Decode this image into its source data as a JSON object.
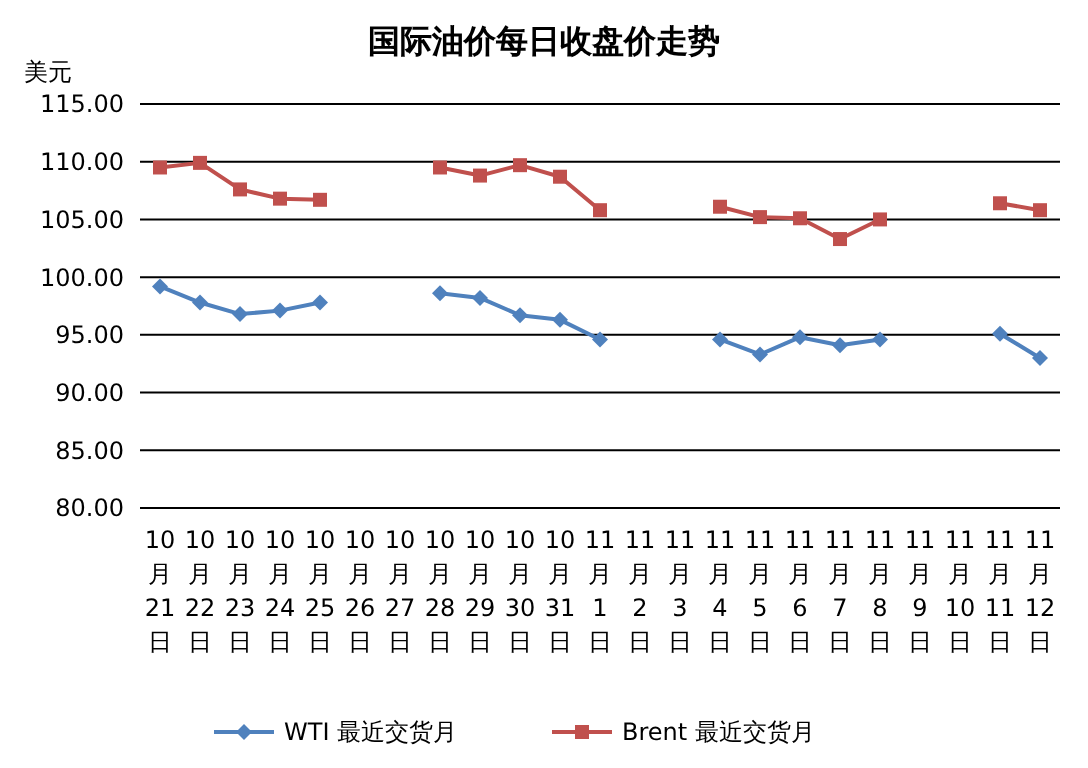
{
  "chart_data": {
    "type": "line",
    "title": "国际油价每日收盘价走势",
    "ylabel": "美元",
    "categories": [
      "10月21日",
      "10月22日",
      "10月23日",
      "10月24日",
      "10月25日",
      "10月26日",
      "10月27日",
      "10月28日",
      "10月29日",
      "10月30日",
      "10月31日",
      "11月1日",
      "11月2日",
      "11月3日",
      "11月4日",
      "11月5日",
      "11月6日",
      "11月7日",
      "11月8日",
      "11月9日",
      "11月10日",
      "11月11日",
      "11月12日"
    ],
    "series": [
      {
        "name": "WTI 最近交货月",
        "color": "#4f81bd",
        "marker": "diamond",
        "values": [
          99.2,
          97.8,
          96.8,
          97.1,
          97.8,
          null,
          null,
          98.6,
          98.2,
          96.7,
          96.3,
          94.6,
          null,
          null,
          94.6,
          93.3,
          94.8,
          94.1,
          94.6,
          null,
          null,
          95.1,
          93.0
        ]
      },
      {
        "name": "Brent 最近交货月",
        "color": "#c0504d",
        "marker": "square",
        "values": [
          109.5,
          109.9,
          107.6,
          106.8,
          106.7,
          null,
          null,
          109.5,
          108.8,
          109.7,
          108.7,
          105.8,
          null,
          null,
          106.1,
          105.2,
          105.1,
          103.3,
          105.0,
          null,
          null,
          106.4,
          105.8
        ]
      }
    ],
    "ylim": [
      80,
      115
    ],
    "yticks": [
      {
        "value": 80,
        "label": "80.00"
      },
      {
        "value": 85,
        "label": "85.00"
      },
      {
        "value": 90,
        "label": "90.00"
      },
      {
        "value": 95,
        "label": "95.00"
      },
      {
        "value": 100,
        "label": "100.00"
      },
      {
        "value": 105,
        "label": "105.00"
      },
      {
        "value": 110,
        "label": "110.00"
      },
      {
        "value": 115,
        "label": "115.00"
      }
    ],
    "grid": "y",
    "legend": "bottom"
  }
}
